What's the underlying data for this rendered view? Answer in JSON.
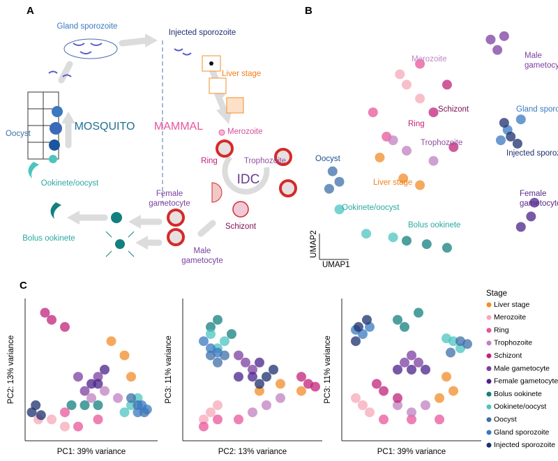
{
  "panel_labels": [
    "A",
    "B",
    "C"
  ],
  "diagram": {
    "gland_sporozoite": "Gland sporozoite",
    "injected_sporozoite": "Injected sporozoite",
    "liver_stage": "Liver stage",
    "merozoite": "Merozoite",
    "ring": "Ring",
    "trophozoite": "Trophozoite",
    "idc": "IDC",
    "schizont": "Schizont",
    "female_gametocyte": [
      "Female",
      "gametocyte"
    ],
    "male_gametocyte": [
      "Male",
      "gametocyte"
    ],
    "bolus_ookinete": "Bolus ookinete",
    "ookinete_oocyst": "Ookinete/oocyst",
    "oocyst": "Oocyst",
    "mosquito": "MOSQUITO",
    "mammal": "MAMMAL"
  },
  "legend_title": "Stage",
  "chart_data": [
    {
      "type": "scatter",
      "x_label": "UMAP1",
      "y_label": "UMAP2",
      "xlim": [
        0,
        100
      ],
      "ylim": [
        0,
        100
      ],
      "annotations": [
        {
          "lines": [
            "Merozoite"
          ],
          "color": "#c084c8"
        },
        {
          "lines": [
            "Schizont"
          ],
          "color": "#7b1050"
        },
        {
          "lines": [
            "Ring"
          ],
          "color": "#c0237a"
        },
        {
          "lines": [
            "Trophozoite"
          ],
          "color": "#9050a0"
        },
        {
          "lines": [
            "Liver stage"
          ],
          "color": "#f07f1a"
        },
        {
          "lines": [
            "Oocyst"
          ],
          "color": "#1c4f8e"
        },
        {
          "lines": [
            "Ookinete/oocyst"
          ],
          "color": "#2aa8a0"
        },
        {
          "lines": [
            "Bolus ookinete"
          ],
          "color": "#2aa8a0"
        },
        {
          "lines": [
            "Male",
            "gametocyte"
          ],
          "color": "#7b3fa0"
        },
        {
          "lines": [
            "Gland sporozoite"
          ],
          "color": "#3a78c0"
        },
        {
          "lines": [
            "Injected sporozoite"
          ],
          "color": "#1c2f6e"
        },
        {
          "lines": [
            "Female",
            "gametocyte"
          ],
          "color": "#5a2a8a"
        }
      ],
      "series": [
        {
          "name": "Liver stage",
          "color": "#f28c28",
          "x": [
            27.8,
            37.5,
            44.4
          ],
          "values": [
            44.3,
            35.7,
            32.9
          ]
        },
        {
          "name": "Merozoite",
          "color": "#f5a8b8",
          "x": [
            38.9,
            44.4,
            36.1
          ],
          "values": [
            74.3,
            68.6,
            78.6
          ]
        },
        {
          "name": "Ring",
          "color": "#e8559a",
          "x": [
            25,
            30.6,
            44.4
          ],
          "values": [
            62.9,
            52.9,
            82.9
          ]
        },
        {
          "name": "Trophozoite",
          "color": "#c080c0",
          "x": [
            38.9,
            50,
            33.3
          ],
          "values": [
            47.1,
            42.9,
            51.4
          ]
        },
        {
          "name": "Schizont",
          "color": "#c0237a",
          "x": [
            55.6,
            58.3,
            50
          ],
          "values": [
            74.3,
            48.6,
            62.9
          ]
        },
        {
          "name": "Male gametocyte",
          "color": "#7b3fa0",
          "x": [
            73.6,
            79.2,
            76.4
          ],
          "values": [
            92.9,
            94.3,
            88.6
          ]
        },
        {
          "name": "Female gametocyte",
          "color": "#4a228a",
          "x": [
            90.3,
            86.1,
            91.7
          ],
          "values": [
            20,
            15.7,
            25.7
          ]
        },
        {
          "name": "Bolus ookinete",
          "color": "#137f7f",
          "x": [
            38.9,
            47.2,
            55.6
          ],
          "values": [
            10,
            8.6,
            7.1
          ]
        },
        {
          "name": "Ookinete/oocyst",
          "color": "#4cc4c0",
          "x": [
            11.1,
            22.2,
            33.3
          ],
          "values": [
            22.9,
            12.9,
            11.4
          ]
        },
        {
          "name": "Oocyst",
          "color": "#3d6fa8",
          "x": [
            8.3,
            11.1,
            6.9
          ],
          "values": [
            38.6,
            34.3,
            31.4
          ]
        },
        {
          "name": "Gland sporozoite",
          "color": "#3a78c0",
          "x": [
            80.6,
            86.1,
            77.8
          ],
          "values": [
            55.7,
            60,
            51.4
          ]
        },
        {
          "name": "Injected sporozoite",
          "color": "#1c2f6e",
          "x": [
            81.9,
            79.2,
            84.7
          ],
          "values": [
            52.9,
            58.6,
            50
          ]
        }
      ]
    },
    {
      "type": "scatter",
      "x_label": "PC1: 39% variance",
      "y_label": "PC2: 13% variance",
      "xlim": [
        0,
        100
      ],
      "ylim": [
        0,
        100
      ],
      "series": [
        {
          "name": "Liver stage",
          "color": "#f28c28",
          "x": [
            75,
            80,
            65
          ],
          "values": [
            60,
            45,
            70
          ]
        },
        {
          "name": "Merozoite",
          "color": "#f5a8b8",
          "x": [
            20,
            10,
            30
          ],
          "values": [
            15,
            15,
            10
          ]
        },
        {
          "name": "Ring",
          "color": "#e8559a",
          "x": [
            40,
            55,
            30
          ],
          "values": [
            10,
            15,
            20
          ]
        },
        {
          "name": "Trophozoite",
          "color": "#c080c0",
          "x": [
            60,
            70,
            50
          ],
          "values": [
            35,
            30,
            30
          ]
        },
        {
          "name": "Schizont",
          "color": "#c0237a",
          "x": [
            20,
            15,
            30
          ],
          "values": [
            85,
            90,
            80
          ]
        },
        {
          "name": "Male gametocyte",
          "color": "#7b3fa0",
          "x": [
            45,
            40,
            55
          ],
          "values": [
            35,
            45,
            45
          ]
        },
        {
          "name": "Female gametocyte",
          "color": "#4a228a",
          "x": [
            50,
            60,
            55
          ],
          "values": [
            40,
            50,
            40
          ]
        },
        {
          "name": "Bolus ookinete",
          "color": "#137f7f",
          "x": [
            35,
            45,
            55
          ],
          "values": [
            25,
            25,
            25
          ]
        },
        {
          "name": "Ookinete/oocyst",
          "color": "#4cc4c0",
          "x": [
            80,
            75,
            85
          ],
          "values": [
            25,
            20,
            30
          ]
        },
        {
          "name": "Oocyst",
          "color": "#3d6fa8",
          "x": [
            85,
            90,
            80
          ],
          "values": [
            25,
            20,
            30
          ]
        },
        {
          "name": "Gland sporozoite",
          "color": "#3a78c0",
          "x": [
            88,
            92,
            85
          ],
          "values": [
            25,
            22,
            20
          ]
        },
        {
          "name": "Injected sporozoite",
          "color": "#1c2f6e",
          "x": [
            5,
            8,
            12
          ],
          "values": [
            20,
            25,
            18
          ]
        }
      ]
    },
    {
      "type": "scatter",
      "x_label": "PC2: 13% variance",
      "y_label": "PC3: 11% variance",
      "xlim": [
        0,
        100
      ],
      "ylim": [
        0,
        100
      ],
      "series": [
        {
          "name": "Liver stage",
          "color": "#f28c28",
          "x": [
            55,
            70,
            85
          ],
          "values": [
            35,
            40,
            35
          ]
        },
        {
          "name": "Merozoite",
          "color": "#f5a8b8",
          "x": [
            20,
            15,
            25
          ],
          "values": [
            20,
            15,
            25
          ]
        },
        {
          "name": "Ring",
          "color": "#e8559a",
          "x": [
            15,
            25,
            40
          ],
          "values": [
            10,
            15,
            15
          ]
        },
        {
          "name": "Trophozoite",
          "color": "#c080c0",
          "x": [
            60,
            70,
            50
          ],
          "values": [
            25,
            30,
            20
          ]
        },
        {
          "name": "Schizont",
          "color": "#c0237a",
          "x": [
            90,
            85,
            95
          ],
          "values": [
            40,
            45,
            38
          ]
        },
        {
          "name": "Male gametocyte",
          "color": "#7b3fa0",
          "x": [
            45,
            40,
            50
          ],
          "values": [
            55,
            60,
            50
          ]
        },
        {
          "name": "Female gametocyte",
          "color": "#4a228a",
          "x": [
            40,
            50,
            55
          ],
          "values": [
            45,
            45,
            55
          ]
        },
        {
          "name": "Bolus ookinete",
          "color": "#137f7f",
          "x": [
            20,
            35,
            25
          ],
          "values": [
            80,
            75,
            85
          ]
        },
        {
          "name": "Ookinete/oocyst",
          "color": "#4cc4c0",
          "x": [
            25,
            20,
            30
          ],
          "values": [
            65,
            75,
            70
          ]
        },
        {
          "name": "Oocyst",
          "color": "#3d6fa8",
          "x": [
            20,
            25,
            30
          ],
          "values": [
            60,
            55,
            60
          ]
        },
        {
          "name": "Gland sporozoite",
          "color": "#3a78c0",
          "x": [
            15,
            20,
            25
          ],
          "values": [
            70,
            65,
            62
          ]
        },
        {
          "name": "Injected sporozoite",
          "color": "#1c2f6e",
          "x": [
            60,
            55,
            65
          ],
          "values": [
            45,
            40,
            50
          ]
        }
      ]
    },
    {
      "type": "scatter",
      "x_label": "PC1: 39% variance",
      "y_label": "PC3: 11% variance",
      "xlim": [
        0,
        100
      ],
      "ylim": [
        0,
        100
      ],
      "series": [
        {
          "name": "Liver stage",
          "color": "#f28c28",
          "x": [
            75,
            80,
            70
          ],
          "values": [
            45,
            35,
            30
          ]
        },
        {
          "name": "Merozoite",
          "color": "#f5a8b8",
          "x": [
            10,
            15,
            20
          ],
          "values": [
            30,
            25,
            20
          ]
        },
        {
          "name": "Ring",
          "color": "#e8559a",
          "x": [
            30,
            50,
            70
          ],
          "values": [
            15,
            15,
            15
          ]
        },
        {
          "name": "Trophozoite",
          "color": "#c080c0",
          "x": [
            60,
            50,
            40
          ],
          "values": [
            25,
            20,
            25
          ]
        },
        {
          "name": "Schizont",
          "color": "#c0237a",
          "x": [
            30,
            40,
            25
          ],
          "values": [
            35,
            30,
            40
          ]
        },
        {
          "name": "Male gametocyte",
          "color": "#7b3fa0",
          "x": [
            45,
            55,
            50
          ],
          "values": [
            55,
            55,
            60
          ]
        },
        {
          "name": "Female gametocyte",
          "color": "#4a228a",
          "x": [
            40,
            60,
            50
          ],
          "values": [
            50,
            50,
            50
          ]
        },
        {
          "name": "Bolus ookinete",
          "color": "#137f7f",
          "x": [
            40,
            55,
            45
          ],
          "values": [
            85,
            90,
            80
          ]
        },
        {
          "name": "Ookinete/oocyst",
          "color": "#4cc4c0",
          "x": [
            80,
            85,
            75
          ],
          "values": [
            70,
            65,
            72
          ]
        },
        {
          "name": "Oocyst",
          "color": "#3d6fa8",
          "x": [
            85,
            90,
            78
          ],
          "values": [
            70,
            68,
            62
          ]
        },
        {
          "name": "Gland sporozoite",
          "color": "#3a78c0",
          "x": [
            15,
            20,
            10
          ],
          "values": [
            75,
            80,
            78
          ]
        },
        {
          "name": "Injected sporozoite",
          "color": "#1c2f6e",
          "x": [
            12,
            18,
            10
          ],
          "values": [
            80,
            85,
            70
          ]
        }
      ]
    }
  ]
}
